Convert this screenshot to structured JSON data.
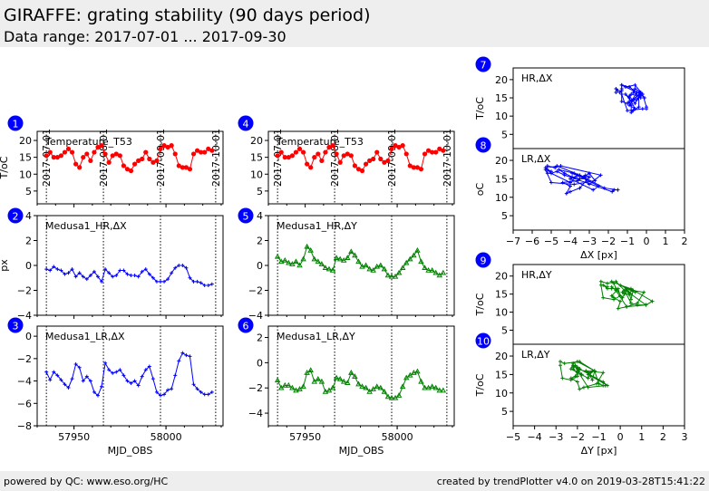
{
  "header": {
    "title": "GIRAFFE: grating stability (90 days period)",
    "subtitle": "Data range: 2017-07-01 ... 2017-09-30"
  },
  "footer": {
    "left": "powered by QC: www.eso.org/HC",
    "right": "created by trendPlotter v4.0 on 2019-03-28T15:41:22"
  },
  "colors": {
    "temperature": "#ff0000",
    "dx": "#0000ff",
    "dy": "#008000",
    "badge": "#0000ff"
  },
  "date_markers": {
    "mjd": [
      57935,
      57966,
      57997,
      58027
    ],
    "labels": [
      "2017-07-01",
      "2017-08-01",
      "2017-09-01",
      "2017-10-01"
    ]
  },
  "chart_data": [
    {
      "id": 1,
      "type": "line",
      "label": "Temperature_T53",
      "ylabel": "T/oC",
      "xlabel": "",
      "xlim": [
        57930,
        58031
      ],
      "ylim": [
        1.2,
        22.7
      ],
      "yticks": [
        5,
        10,
        15,
        20
      ],
      "xticks": [],
      "series": "temperature",
      "marker": "circle",
      "color": "#ff0000"
    },
    {
      "id": 2,
      "type": "line",
      "label": "Medusa1_HR,ΔX",
      "ylabel": "px",
      "xlabel": "",
      "xlim": [
        57930,
        58031
      ],
      "ylim": [
        -4,
        4
      ],
      "yticks": [
        -4,
        -2,
        0,
        2,
        4
      ],
      "xticks": [],
      "series": "hr_dx",
      "marker": "plus",
      "color": "#0000ff"
    },
    {
      "id": 3,
      "type": "line",
      "label": "Medusa1_LR,ΔX",
      "ylabel": "",
      "xlabel": "MJD_OBS",
      "xlim": [
        57930,
        58031
      ],
      "ylim": [
        -8,
        0.9
      ],
      "yticks": [
        -8,
        -6,
        -4,
        -2,
        0
      ],
      "xticks": [
        57950,
        58000
      ],
      "series": "lr_dx",
      "marker": "plus",
      "color": "#0000ff"
    },
    {
      "id": 4,
      "type": "line",
      "label": "Temperature_T53",
      "ylabel": "",
      "xlabel": "",
      "xlim": [
        57930,
        58031
      ],
      "ylim": [
        1.2,
        22.7
      ],
      "yticks": [
        5,
        10,
        15,
        20
      ],
      "xticks": [],
      "series": "temperature",
      "marker": "circle",
      "color": "#ff0000"
    },
    {
      "id": 5,
      "type": "line",
      "label": "Medusa1_HR,ΔY",
      "ylabel": "",
      "xlabel": "",
      "xlim": [
        57930,
        58031
      ],
      "ylim": [
        -4,
        4
      ],
      "yticks": [
        -4,
        -2,
        0,
        2,
        4
      ],
      "xticks": [],
      "series": "hr_dy",
      "marker": "triangle",
      "color": "#008000"
    },
    {
      "id": 6,
      "type": "line",
      "label": "Medusa1_LR,ΔY",
      "ylabel": "",
      "xlabel": "MJD_OBS",
      "xlim": [
        57930,
        58031
      ],
      "ylim": [
        -5,
        2.9
      ],
      "yticks": [
        -4,
        -2,
        0,
        2
      ],
      "xticks": [
        57950,
        58000
      ],
      "series": "lr_dy",
      "marker": "triangle",
      "color": "#008000"
    },
    {
      "id": 7,
      "type": "scatter",
      "label": "HR,ΔX",
      "ylabel": "T/oC",
      "xlabel": "",
      "xlim": [
        -7,
        2
      ],
      "ylim": [
        1.1,
        23.2
      ],
      "yticks": [
        5,
        10,
        15,
        20
      ],
      "xticks": [],
      "xseries": "hr_dx",
      "yseries": "temperature",
      "color": "#0000ff"
    },
    {
      "id": 8,
      "type": "scatter",
      "label": "LR,ΔX",
      "ylabel": "oC",
      "xlabel": "ΔX [px]",
      "xlim": [
        -7,
        2
      ],
      "ylim": [
        1.1,
        23.2
      ],
      "yticks": [
        5,
        10,
        15,
        20
      ],
      "xticks": [
        -7,
        -6,
        -5,
        -4,
        -3,
        -2,
        -1,
        0,
        1,
        2
      ],
      "xseries": "lr_dx",
      "yseries": "temperature",
      "color": "#0000ff"
    },
    {
      "id": 9,
      "type": "scatter",
      "label": "HR,ΔY",
      "ylabel": "T/oC",
      "xlabel": "",
      "xlim": [
        -5,
        3
      ],
      "ylim": [
        1.1,
        23.2
      ],
      "yticks": [
        5,
        10,
        15,
        20
      ],
      "xticks": [],
      "xseries": "hr_dy",
      "yseries": "temperature",
      "color": "#008000"
    },
    {
      "id": 10,
      "type": "scatter",
      "label": "LR,ΔY",
      "ylabel": "T/oC",
      "xlabel": "ΔY [px]",
      "xlim": [
        -5,
        3
      ],
      "ylim": [
        1.1,
        23.2
      ],
      "yticks": [
        5,
        10,
        15,
        20
      ],
      "xticks": [
        -5,
        -4,
        -3,
        -2,
        -1,
        0,
        1,
        2,
        3
      ],
      "xseries": "lr_dy",
      "yseries": "temperature",
      "color": "#008000"
    }
  ],
  "series": {
    "mjd": [
      57935,
      57937,
      57939,
      57941,
      57943,
      57945,
      57947,
      57949,
      57951,
      57953,
      57955,
      57957,
      57959,
      57961,
      57963,
      57965,
      57967,
      57969,
      57971,
      57973,
      57975,
      57977,
      57979,
      57981,
      57983,
      57985,
      57987,
      57989,
      57991,
      57993,
      57995,
      57997,
      57999,
      58001,
      58003,
      58005,
      58007,
      58009,
      58011,
      58013,
      58015,
      58017,
      58019,
      58021,
      58023,
      58025
    ],
    "temperature": [
      15.5,
      16.5,
      15,
      15,
      15.5,
      16.5,
      17.5,
      16.5,
      13,
      12,
      15,
      16,
      14,
      16.5,
      18,
      18.5,
      16,
      13.5,
      15.5,
      16,
      15.5,
      12.5,
      11.5,
      11,
      13,
      14,
      14.5,
      16.5,
      14.5,
      13.5,
      14,
      17.5,
      18.5,
      18,
      18.5,
      16,
      12.5,
      12,
      12,
      11.5,
      16,
      17,
      16.5,
      16.5,
      17.5,
      17
    ],
    "hr_dx": [
      -0.3,
      -0.4,
      -0.1,
      -0.3,
      -0.4,
      -0.7,
      -0.6,
      -0.3,
      -0.9,
      -0.6,
      -0.9,
      -1.1,
      -0.8,
      -0.5,
      -0.9,
      -1.3,
      -0.3,
      -0.6,
      -0.9,
      -0.8,
      -0.4,
      -0.4,
      -0.7,
      -0.8,
      -0.8,
      -0.9,
      -0.5,
      -0.3,
      -0.7,
      -1.0,
      -1.3,
      -1.3,
      -1.3,
      -1.1,
      -0.6,
      -0.2,
      0,
      0,
      -0.2,
      -1.0,
      -1.3,
      -1.3,
      -1.4,
      -1.6,
      -1.6,
      -1.5
    ],
    "lr_dx": [
      -3.2,
      -3.9,
      -3.2,
      -3.5,
      -3.9,
      -4.3,
      -4.6,
      -3.8,
      -2.5,
      -2.8,
      -4.0,
      -3.6,
      -4.0,
      -5.0,
      -5.3,
      -4.5,
      -2.4,
      -3.0,
      -3.3,
      -3.2,
      -3.0,
      -3.5,
      -4.0,
      -4.2,
      -4.0,
      -4.4,
      -3.6,
      -3.0,
      -2.7,
      -3.8,
      -5.0,
      -5.3,
      -5.2,
      -4.8,
      -4.7,
      -3.5,
      -2.2,
      -1.5,
      -1.7,
      -1.8,
      -4.3,
      -4.7,
      -5.0,
      -5.2,
      -5.2,
      -5.0
    ],
    "hr_dy": [
      0.7,
      0.3,
      0.4,
      0.2,
      0.1,
      0.3,
      0,
      0.5,
      1.5,
      1.2,
      0.5,
      0.3,
      0.1,
      -0.2,
      -0.3,
      -0.4,
      0.6,
      0.5,
      0.4,
      0.6,
      1.1,
      0.8,
      0.3,
      -0.1,
      0,
      -0.3,
      -0.4,
      -0.1,
      0,
      -0.3,
      -0.8,
      -0.9,
      -0.9,
      -0.6,
      -0.2,
      0.2,
      0.5,
      0.8,
      1.2,
      0.3,
      -0.2,
      -0.4,
      -0.4,
      -0.6,
      -0.8,
      -0.6
    ],
    "lr_dy": [
      -1.4,
      -2.0,
      -1.8,
      -1.8,
      -2.0,
      -2.2,
      -2.1,
      -1.9,
      -0.8,
      -0.6,
      -1.5,
      -1.3,
      -1.5,
      -2.3,
      -2.2,
      -2.0,
      -1.2,
      -1.3,
      -1.5,
      -1.6,
      -0.8,
      -1.1,
      -1.7,
      -1.9,
      -2.0,
      -2.3,
      -2.1,
      -1.9,
      -2.0,
      -2.3,
      -2.7,
      -2.8,
      -2.8,
      -2.6,
      -1.9,
      -1.2,
      -1.0,
      -0.8,
      -0.7,
      -1.5,
      -2.0,
      -2.0,
      -1.9,
      -2.0,
      -2.2,
      -2.2
    ]
  }
}
